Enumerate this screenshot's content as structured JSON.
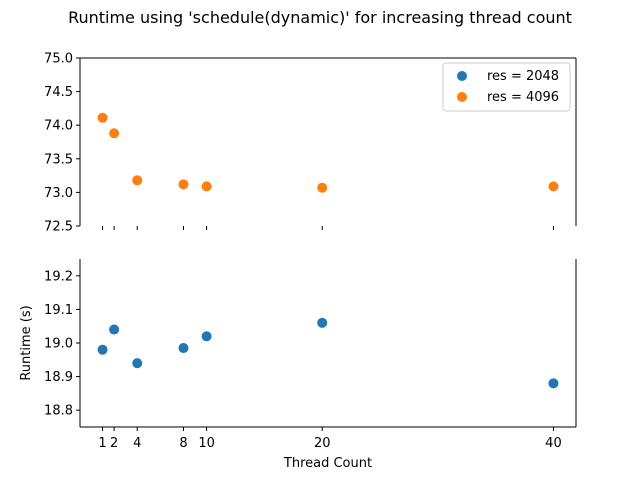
{
  "chart_data": {
    "type": "scatter",
    "title": "Runtime using 'schedule(dynamic)' for increasing thread count",
    "xlabel": "Thread Count",
    "ylabel": "Runtime (s)",
    "x_ticks": [
      1,
      2,
      4,
      8,
      10,
      20,
      40
    ],
    "broken_axis": true,
    "legend_position": "top-right",
    "panels": [
      {
        "name": "upper",
        "ylim": [
          72.5,
          75.0
        ],
        "y_ticks": [
          "72.5",
          "73.0",
          "73.5",
          "74.0",
          "74.5",
          "75.0"
        ]
      },
      {
        "name": "lower",
        "ylim": [
          18.75,
          19.25
        ],
        "y_ticks": [
          "18.8",
          "18.9",
          "19.0",
          "19.1",
          "19.2"
        ]
      }
    ],
    "series": [
      {
        "name": "res = 2048",
        "color": "#1f77b4",
        "panel": "lower",
        "x": [
          1,
          2,
          4,
          8,
          10,
          20,
          40
        ],
        "y": [
          18.98,
          19.04,
          18.94,
          18.985,
          19.02,
          19.06,
          18.88
        ]
      },
      {
        "name": "res = 4096",
        "color": "#ff7f0e",
        "panel": "upper",
        "x": [
          1,
          2,
          4,
          8,
          10,
          20,
          40
        ],
        "y": [
          74.11,
          73.88,
          73.18,
          73.12,
          73.09,
          73.07,
          73.09
        ]
      }
    ]
  }
}
